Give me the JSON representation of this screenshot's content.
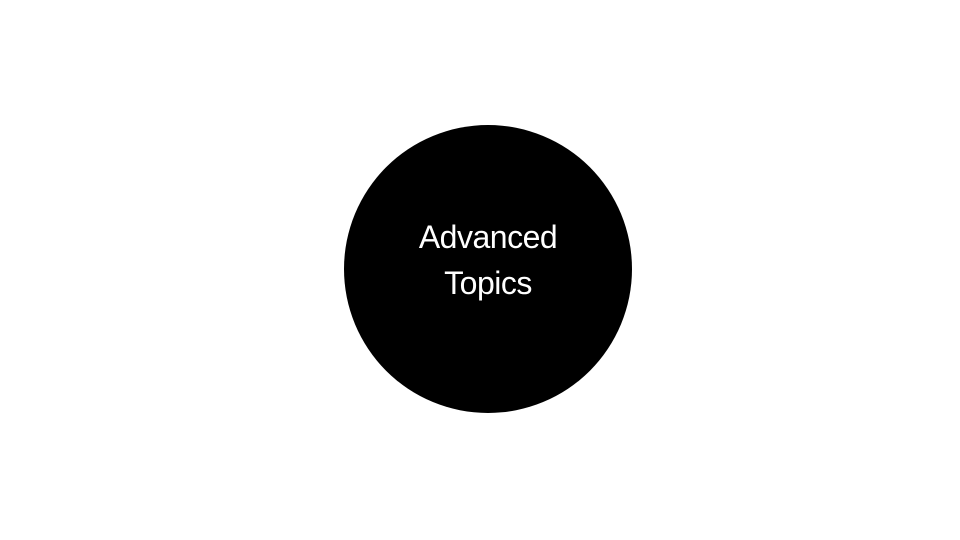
{
  "diagram": {
    "node": {
      "label_lines": [
        "Advanced",
        "Topics"
      ],
      "fill_color": "#000000",
      "text_color": "#ffffff"
    }
  },
  "background_color": "#ffffff"
}
